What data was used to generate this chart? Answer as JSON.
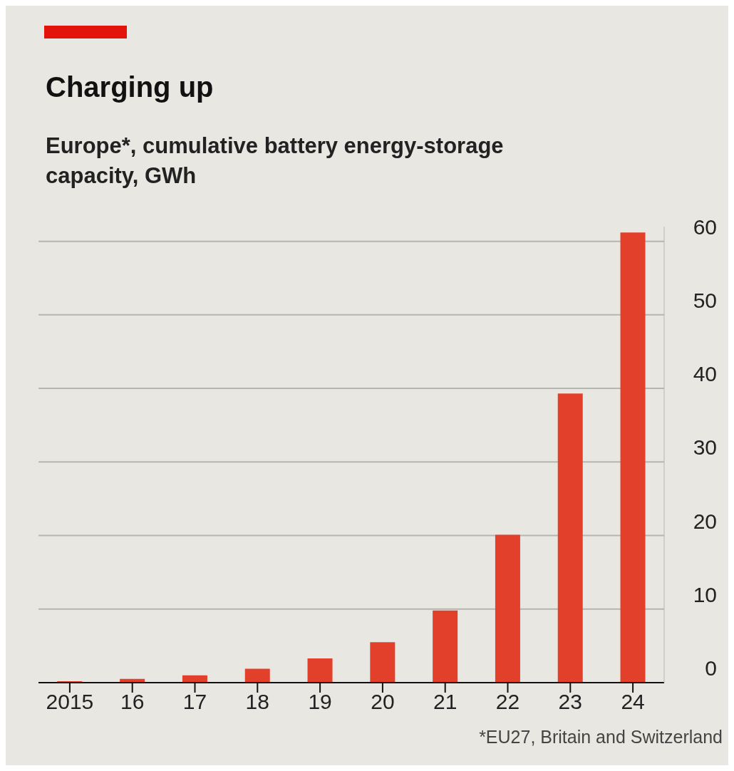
{
  "chart_data": {
    "type": "bar",
    "title": "Charging up",
    "subtitle": "Europe*, cumulative battery energy-storage capacity, GWh",
    "categories": [
      "2015",
      "16",
      "17",
      "18",
      "19",
      "20",
      "21",
      "22",
      "23",
      "24"
    ],
    "values": [
      0.2,
      0.5,
      1.0,
      1.9,
      3.3,
      5.5,
      9.8,
      20.1,
      39.3,
      61.2
    ],
    "color": "#e3402b",
    "ylim": [
      0,
      62
    ],
    "yticks": [
      0,
      10,
      20,
      30,
      40,
      50,
      60
    ],
    "grid": "y",
    "annotations": [
      "*EU27, Britain and Switzerland"
    ]
  }
}
